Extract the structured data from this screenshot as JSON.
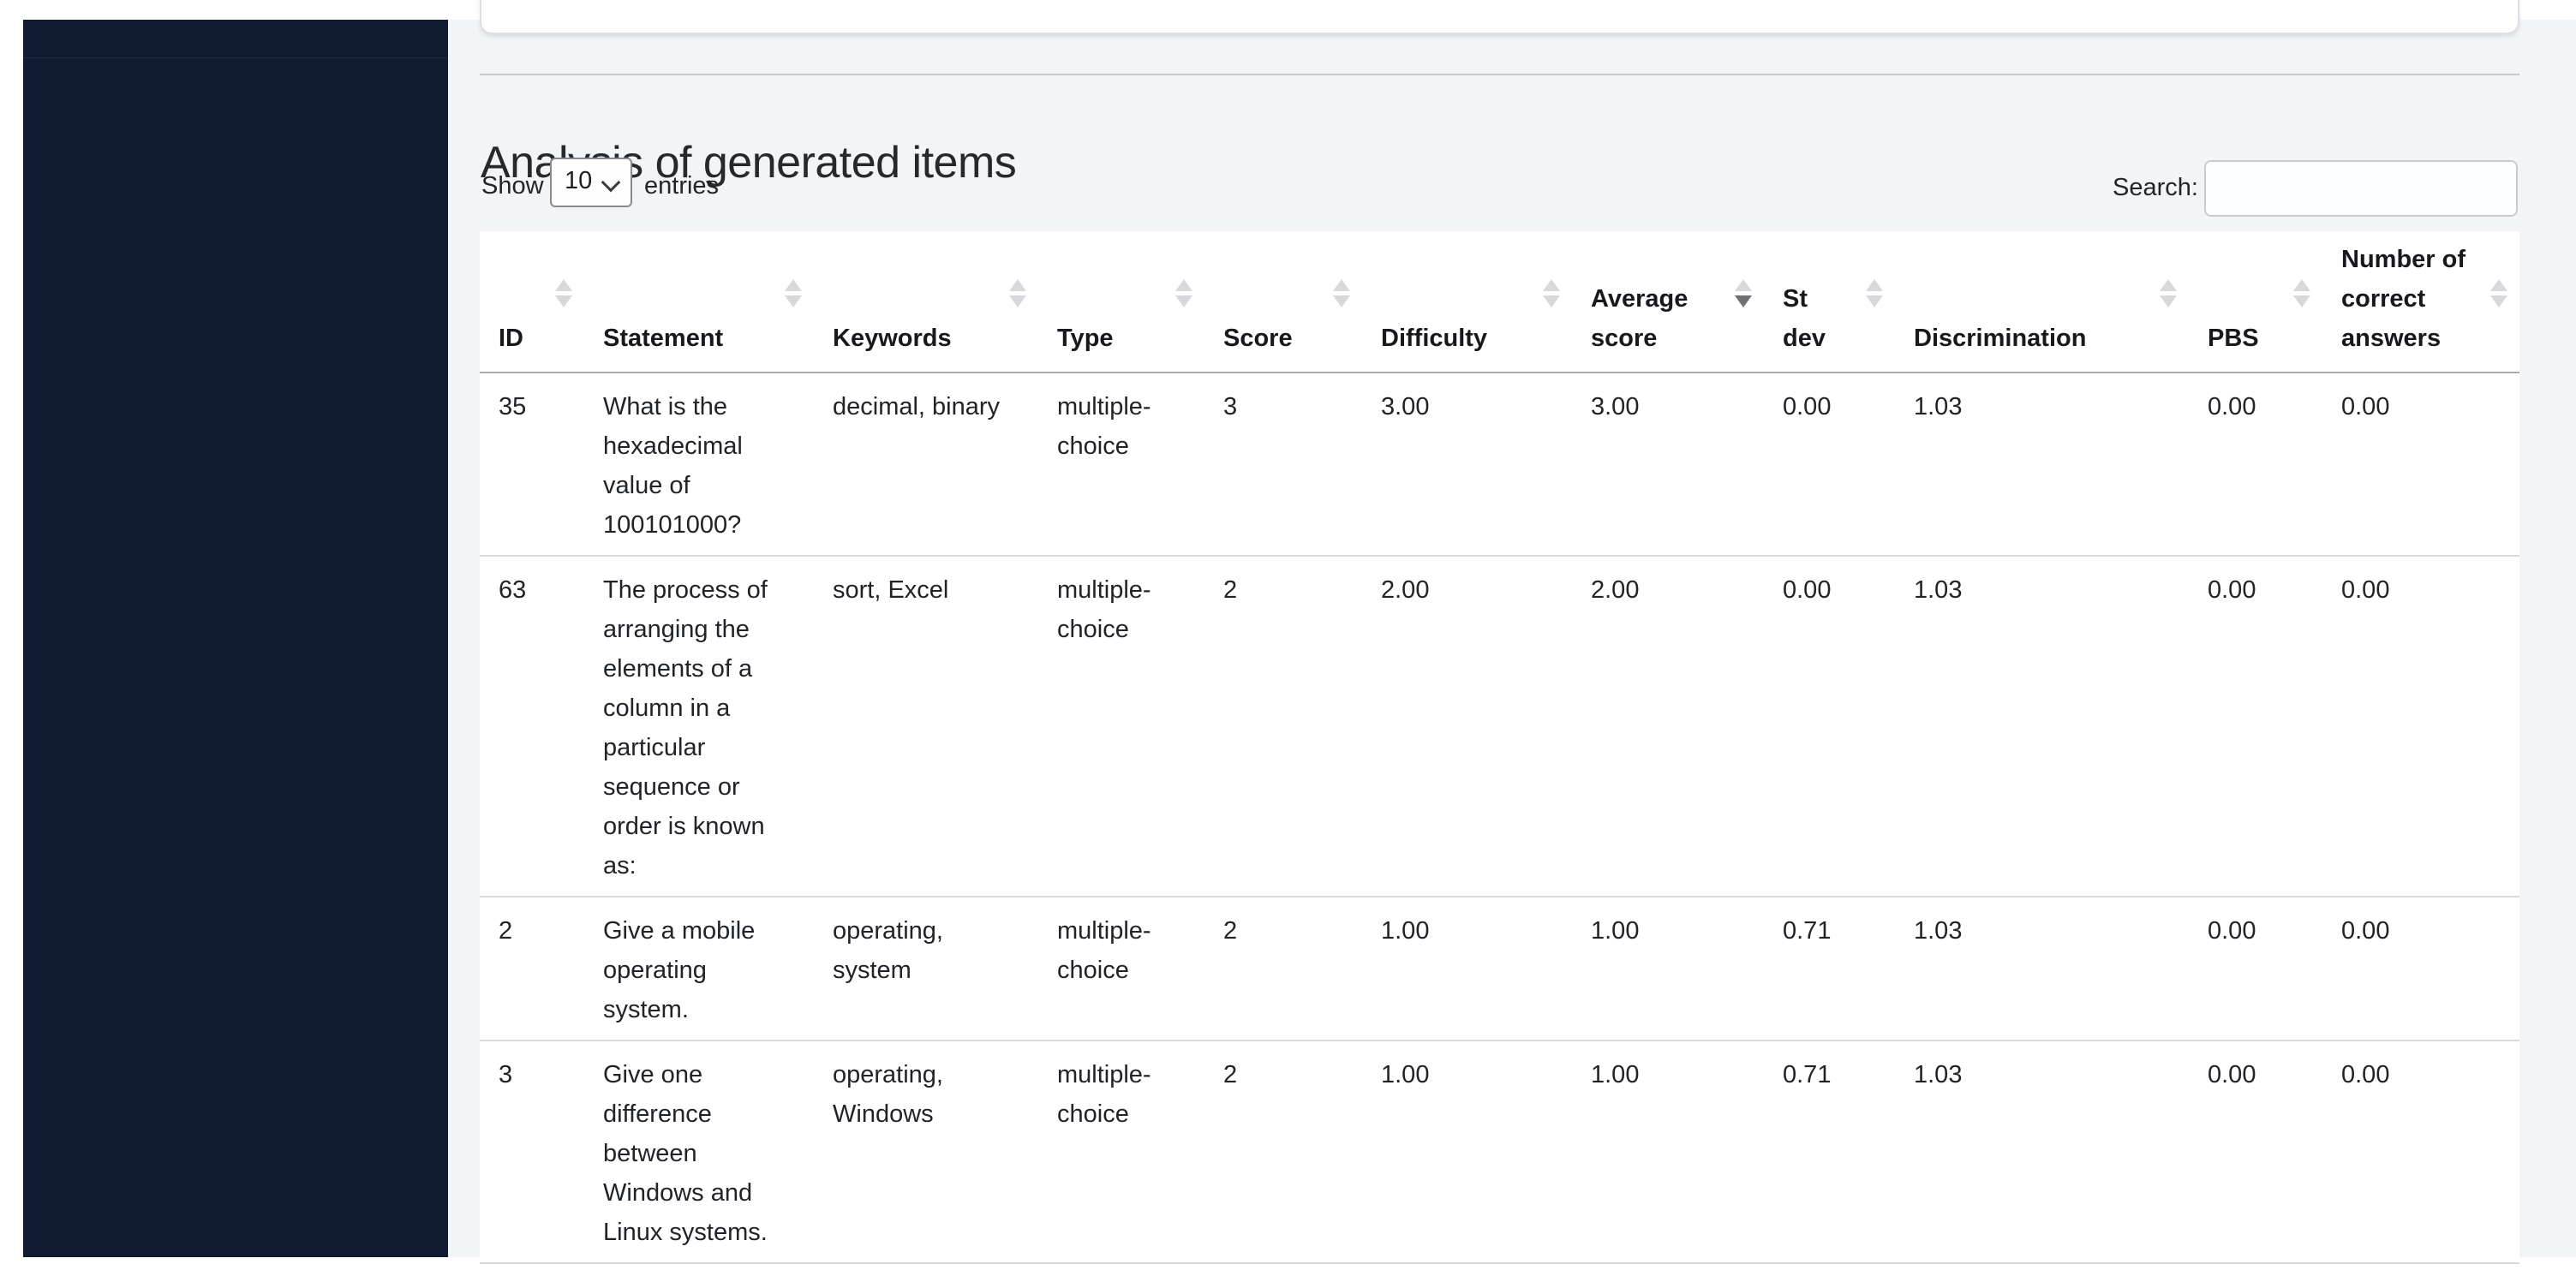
{
  "page": {
    "title": "Analysis of generated items",
    "length_control": {
      "show_label": "Show",
      "selected_value": "10",
      "entries_label": "entries"
    },
    "search": {
      "label": "Search:",
      "value": "",
      "placeholder": ""
    }
  },
  "table": {
    "columns": [
      {
        "key": "id",
        "label": "ID",
        "sort": "unsorted"
      },
      {
        "key": "statement",
        "label": "Statement",
        "sort": "unsorted"
      },
      {
        "key": "keywords",
        "label": "Keywords",
        "sort": "unsorted"
      },
      {
        "key": "type",
        "label": "Type",
        "sort": "unsorted"
      },
      {
        "key": "score",
        "label": "Score",
        "sort": "unsorted"
      },
      {
        "key": "difficulty",
        "label": "Difficulty",
        "sort": "unsorted"
      },
      {
        "key": "average_score",
        "label": "Average score",
        "sort": "desc"
      },
      {
        "key": "st_dev",
        "label": "St dev",
        "sort": "unsorted"
      },
      {
        "key": "discrimination",
        "label": "Discrimination",
        "sort": "unsorted"
      },
      {
        "key": "pbs",
        "label": "PBS",
        "sort": "unsorted"
      },
      {
        "key": "num_correct_answers",
        "label": "Number of correct answers",
        "sort": "unsorted"
      }
    ],
    "rows": [
      {
        "id": "35",
        "statement": "What is the hexadecimal value of 100101000?",
        "keywords": "decimal, binary",
        "type": "multiple-choice",
        "score": "3",
        "difficulty": "3.00",
        "average_score": "3.00",
        "st_dev": "0.00",
        "discrimination": "1.03",
        "pbs": "0.00",
        "num_correct_answers": "0.00"
      },
      {
        "id": "63",
        "statement": "The process of arranging the elements of a column in a particular sequence or order is known as:",
        "keywords": "sort, Excel",
        "type": "multiple-choice",
        "score": "2",
        "difficulty": "2.00",
        "average_score": "2.00",
        "st_dev": "0.00",
        "discrimination": "1.03",
        "pbs": "0.00",
        "num_correct_answers": "0.00"
      },
      {
        "id": "2",
        "statement": "Give a mobile operating system.",
        "keywords": "operating, system",
        "type": "multiple-choice",
        "score": "2",
        "difficulty": "1.00",
        "average_score": "1.00",
        "st_dev": "0.71",
        "discrimination": "1.03",
        "pbs": "0.00",
        "num_correct_answers": "0.00"
      },
      {
        "id": "3",
        "statement": "Give one difference between Windows and Linux systems.",
        "keywords": "operating, Windows",
        "type": "multiple-choice",
        "score": "2",
        "difficulty": "1.00",
        "average_score": "1.00",
        "st_dev": "0.71",
        "discrimination": "1.03",
        "pbs": "0.00",
        "num_correct_answers": "0.00"
      }
    ]
  },
  "colors": {
    "sidebar_bg": "#111c34",
    "content_bg": "#f2f4f8",
    "table_bg": "#ffffff",
    "header_border": "#a9abaf",
    "row_border": "#d9dadc",
    "sort_icon_inactive": "#d6d8dc",
    "sort_icon_active": "#6e7074"
  }
}
